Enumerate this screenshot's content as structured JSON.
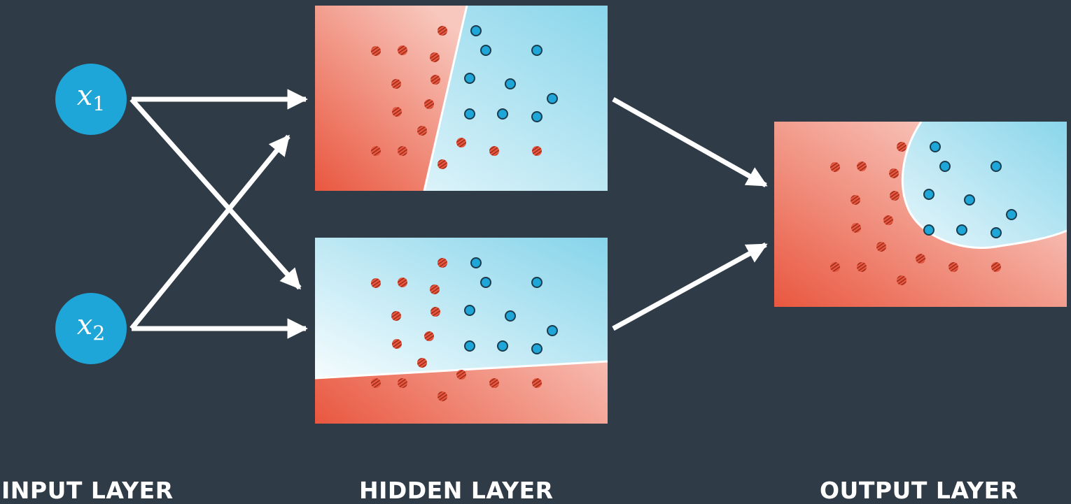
{
  "colors": {
    "background": "#2f3b47",
    "red_class": "#e9573f",
    "blue_class": "#1fa6d8",
    "arrow": "#ffffff",
    "boundary": "#ffffff"
  },
  "inputs": [
    {
      "var": "x",
      "sub": "1"
    },
    {
      "var": "x",
      "sub": "2"
    }
  ],
  "labels": {
    "input_layer": "INPUT LAYER",
    "hidden_layer": "HIDDEN LAYER",
    "output_layer": "OUTPUT LAYER"
  }
}
